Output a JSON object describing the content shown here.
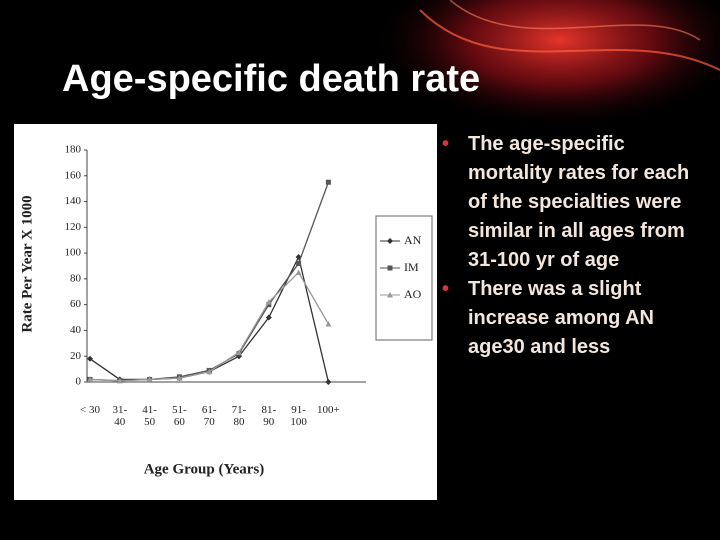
{
  "title": "Age-specific death rate",
  "bullets": [
    "The age-specific mortality rates for each of the specialties were similar in all ages from 31-100 yr of age",
    "There was a slight increase among AN age30 and less"
  ],
  "chart_data": {
    "type": "line",
    "x_label": "Age Group (Years)",
    "y_label": "Rate Per Year X 1000",
    "categories": [
      "< 30",
      "31-\n40",
      "41-\n50",
      "51-\n60",
      "61-\n70",
      "71-\n80",
      "81-\n90",
      "91-\n100",
      "100+"
    ],
    "series": [
      {
        "name": "AN",
        "color": "#333333",
        "values": [
          18,
          2,
          2,
          3,
          8,
          20,
          50,
          97,
          0
        ]
      },
      {
        "name": "IM",
        "color": "#555555",
        "values": [
          2,
          1,
          2,
          4,
          9,
          22,
          60,
          92,
          155
        ]
      },
      {
        "name": "AO",
        "color": "#999999",
        "values": [
          2,
          1,
          2,
          3,
          8,
          23,
          62,
          85,
          45
        ]
      }
    ],
    "ylim": [
      0,
      180
    ],
    "yticks": [
      0,
      20,
      40,
      60,
      80,
      100,
      120,
      140,
      160,
      180
    ],
    "grid": false
  }
}
